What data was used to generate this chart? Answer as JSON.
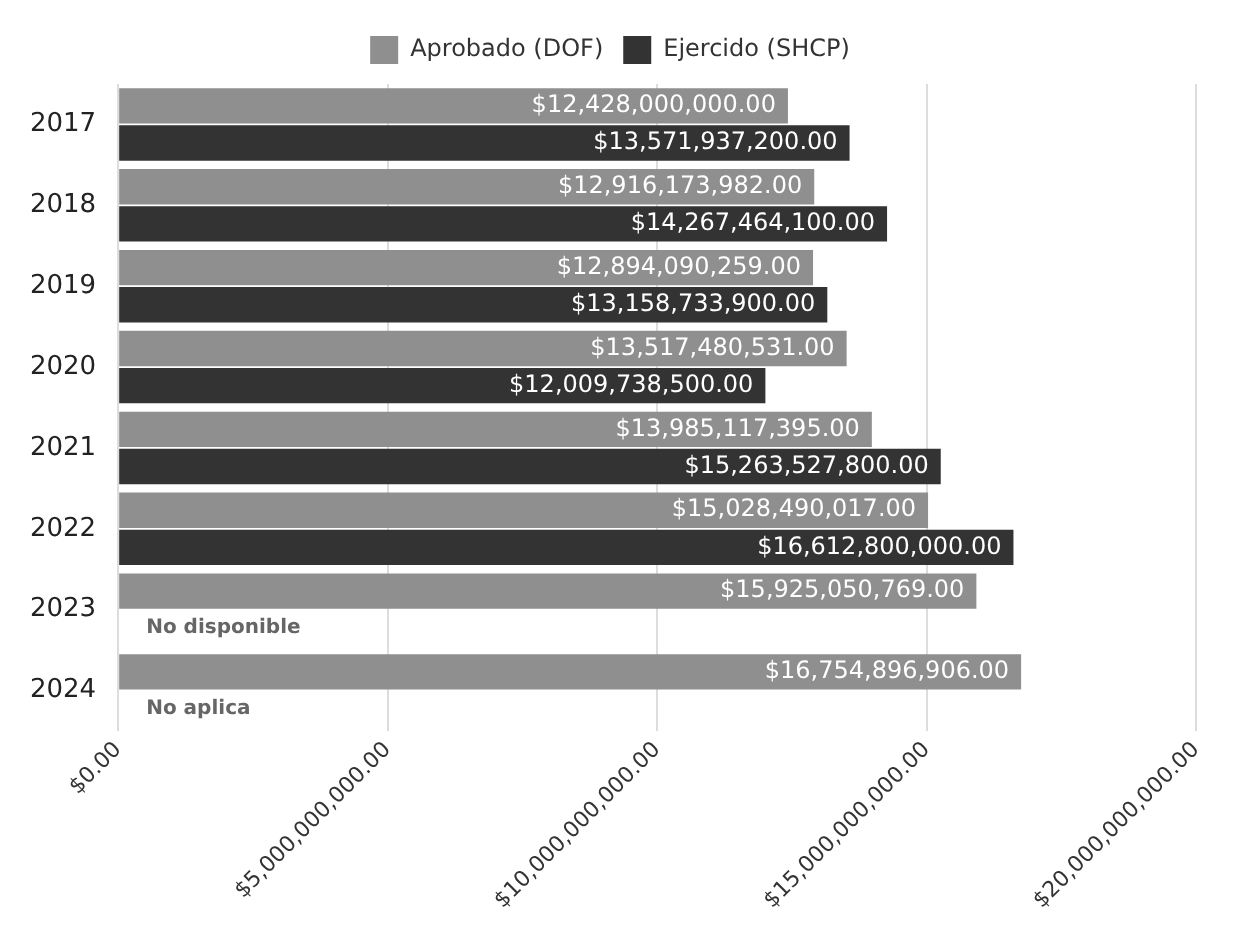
{
  "chart_data": {
    "type": "bar",
    "orientation": "horizontal",
    "categories": [
      "2017",
      "2018",
      "2019",
      "2020",
      "2021",
      "2022",
      "2023",
      "2024"
    ],
    "series": [
      {
        "name": "Aprobado (DOF)",
        "color": "#8f8f8f",
        "values": [
          12428000000,
          12916173982,
          12894090259,
          13517480531,
          13985117395,
          15028490017,
          15925050769,
          16754896906
        ],
        "value_labels": [
          "$12,428,000,000.00",
          "$12,916,173,982.00",
          "$12,894,090,259.00",
          "$13,517,480,531.00",
          "$13,985,117,395.00",
          "$15,028,490,017.00",
          "$15,925,050,769.00",
          "$16,754,896,906.00"
        ]
      },
      {
        "name": "Ejercido (SHCP)",
        "color": "#333333",
        "values": [
          13571937200,
          14267464100,
          13158733900,
          12009738500,
          15263527800,
          16612800000,
          null,
          null
        ],
        "value_labels": [
          "$13,571,937,200.00",
          "$14,267,464,100.00",
          "$13,158,733,900.00",
          "$12,009,738,500.00",
          "$15,263,527,800.00",
          "$16,612,800,000.00",
          "No disponible",
          "No aplica"
        ]
      }
    ],
    "xlim": [
      0,
      20000000000
    ],
    "xticks": [
      {
        "value": 0,
        "label": "$0.00"
      },
      {
        "value": 5000000000,
        "label": "$5,000,000,000.00"
      },
      {
        "value": 10000000000,
        "label": "$10,000,000,000.00"
      },
      {
        "value": 15000000000,
        "label": "$15,000,000,000.00"
      },
      {
        "value": 20000000000,
        "label": "$20,000,000,000.00"
      }
    ],
    "grid": "x",
    "legend": "top"
  }
}
